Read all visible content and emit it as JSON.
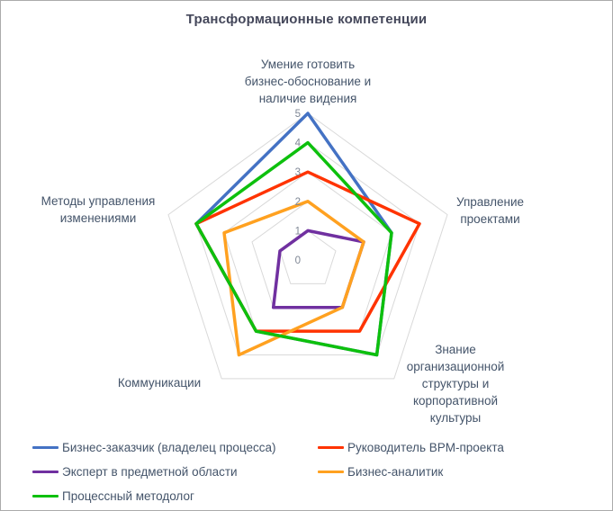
{
  "title": "Трансформационные компетенции",
  "chart_data": {
    "type": "radar",
    "title": "Трансформационные компетенции",
    "categories": [
      "Умение готовить бизнес-обоснование и наличие видения",
      "Управление проектами",
      "Знание организационной структуры и корпоративной культуры",
      "Коммуникации",
      "Методы управления изменениями"
    ],
    "series": [
      {
        "name": "Бизнес-заказчик (владелец процесса)",
        "color": "#4472C4",
        "values": [
          5,
          3,
          4,
          3,
          4
        ]
      },
      {
        "name": "Руководитель BPM-проекта",
        "color": "#FF3300",
        "values": [
          3,
          4,
          3,
          3,
          4
        ]
      },
      {
        "name": "Эксперт в предметной области",
        "color": "#7030A0",
        "values": [
          1,
          2,
          2,
          2,
          1
        ]
      },
      {
        "name": "Бизнес-аналитик",
        "color": "#FFA120",
        "values": [
          2,
          2,
          2,
          4,
          3
        ]
      },
      {
        "name": "Процессный методолог",
        "color": "#0DC00D",
        "values": [
          4,
          3,
          4,
          3,
          4
        ]
      }
    ],
    "axis": {
      "min": 0,
      "max": 5,
      "step": 1,
      "tick_labels": [
        "0",
        "1",
        "2",
        "3",
        "4",
        "5"
      ]
    },
    "grid": "pentagon-rings",
    "legend_position": "bottom, two columns"
  },
  "colors": {
    "grid_line": "#D9D9D9",
    "tick_label": "#7F8795",
    "axis_label": "#44546A",
    "title": "#44475A",
    "legend_text": "#44546A",
    "background": "#FFFFFF",
    "frame_border": "#ABABAB"
  }
}
